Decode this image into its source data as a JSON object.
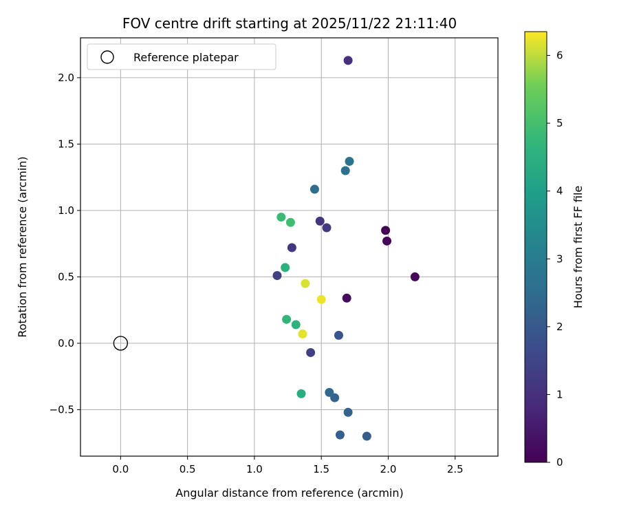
{
  "chart_data": {
    "type": "scatter",
    "title": "FOV centre drift starting at 2025/11/22 21:11:40",
    "xlabel": "Angular distance from reference (arcmin)",
    "ylabel": "Rotation from reference (arcmin)",
    "xlim": [
      -0.3,
      2.82
    ],
    "ylim": [
      -0.85,
      2.3
    ],
    "xticks": [
      0.0,
      0.5,
      1.0,
      1.5,
      2.0,
      2.5
    ],
    "xtick_labels": [
      "0.0",
      "0.5",
      "1.0",
      "1.5",
      "2.0",
      "2.5"
    ],
    "yticks": [
      -0.5,
      0.0,
      0.5,
      1.0,
      1.5,
      2.0
    ],
    "ytick_labels": [
      "−0.5",
      "0.0",
      "0.5",
      "1.0",
      "1.5",
      "2.0"
    ],
    "grid": true,
    "legend": {
      "location": "top-left",
      "entries": [
        "Reference platepar"
      ]
    },
    "reference_point": {
      "x": 0.0,
      "y": 0.0,
      "label": "Reference platepar"
    },
    "colorbar": {
      "label": "Hours from first FF file",
      "colormap": "viridis",
      "range": [
        0,
        6.35
      ],
      "ticks": [
        0,
        1,
        2,
        3,
        4,
        5,
        6
      ],
      "tick_labels": [
        "0",
        "1",
        "2",
        "3",
        "4",
        "5",
        "6"
      ]
    },
    "points": [
      {
        "x": 1.98,
        "y": 0.85,
        "hours": 0.02
      },
      {
        "x": 1.99,
        "y": 0.77,
        "hours": 0.1
      },
      {
        "x": 2.2,
        "y": 0.5,
        "hours": 0.15
      },
      {
        "x": 1.69,
        "y": 0.34,
        "hours": 0.2
      },
      {
        "x": 1.7,
        "y": 2.13,
        "hours": 1.0
      },
      {
        "x": 1.49,
        "y": 0.92,
        "hours": 1.1
      },
      {
        "x": 1.54,
        "y": 0.87,
        "hours": 1.2
      },
      {
        "x": 1.28,
        "y": 0.72,
        "hours": 1.15
      },
      {
        "x": 1.17,
        "y": 0.51,
        "hours": 1.35
      },
      {
        "x": 1.42,
        "y": -0.07,
        "hours": 1.4
      },
      {
        "x": 1.63,
        "y": 0.06,
        "hours": 1.9
      },
      {
        "x": 1.84,
        "y": -0.7,
        "hours": 2.05
      },
      {
        "x": 1.64,
        "y": -0.69,
        "hours": 2.15
      },
      {
        "x": 1.7,
        "y": -0.52,
        "hours": 2.2
      },
      {
        "x": 1.6,
        "y": -0.41,
        "hours": 2.25
      },
      {
        "x": 1.56,
        "y": -0.37,
        "hours": 2.4
      },
      {
        "x": 1.45,
        "y": 1.16,
        "hours": 2.55
      },
      {
        "x": 1.68,
        "y": 1.3,
        "hours": 2.65
      },
      {
        "x": 1.71,
        "y": 1.37,
        "hours": 2.75
      },
      {
        "x": 1.35,
        "y": -0.38,
        "hours": 4.45
      },
      {
        "x": 1.23,
        "y": 0.57,
        "hours": 4.5
      },
      {
        "x": 1.31,
        "y": 0.14,
        "hours": 4.55
      },
      {
        "x": 1.24,
        "y": 0.18,
        "hours": 4.7
      },
      {
        "x": 1.2,
        "y": 0.95,
        "hours": 4.85
      },
      {
        "x": 1.27,
        "y": 0.91,
        "hours": 4.95
      },
      {
        "x": 1.38,
        "y": 0.45,
        "hours": 6.15
      },
      {
        "x": 1.36,
        "y": 0.07,
        "hours": 6.2
      },
      {
        "x": 1.5,
        "y": 0.33,
        "hours": 6.25
      }
    ]
  }
}
